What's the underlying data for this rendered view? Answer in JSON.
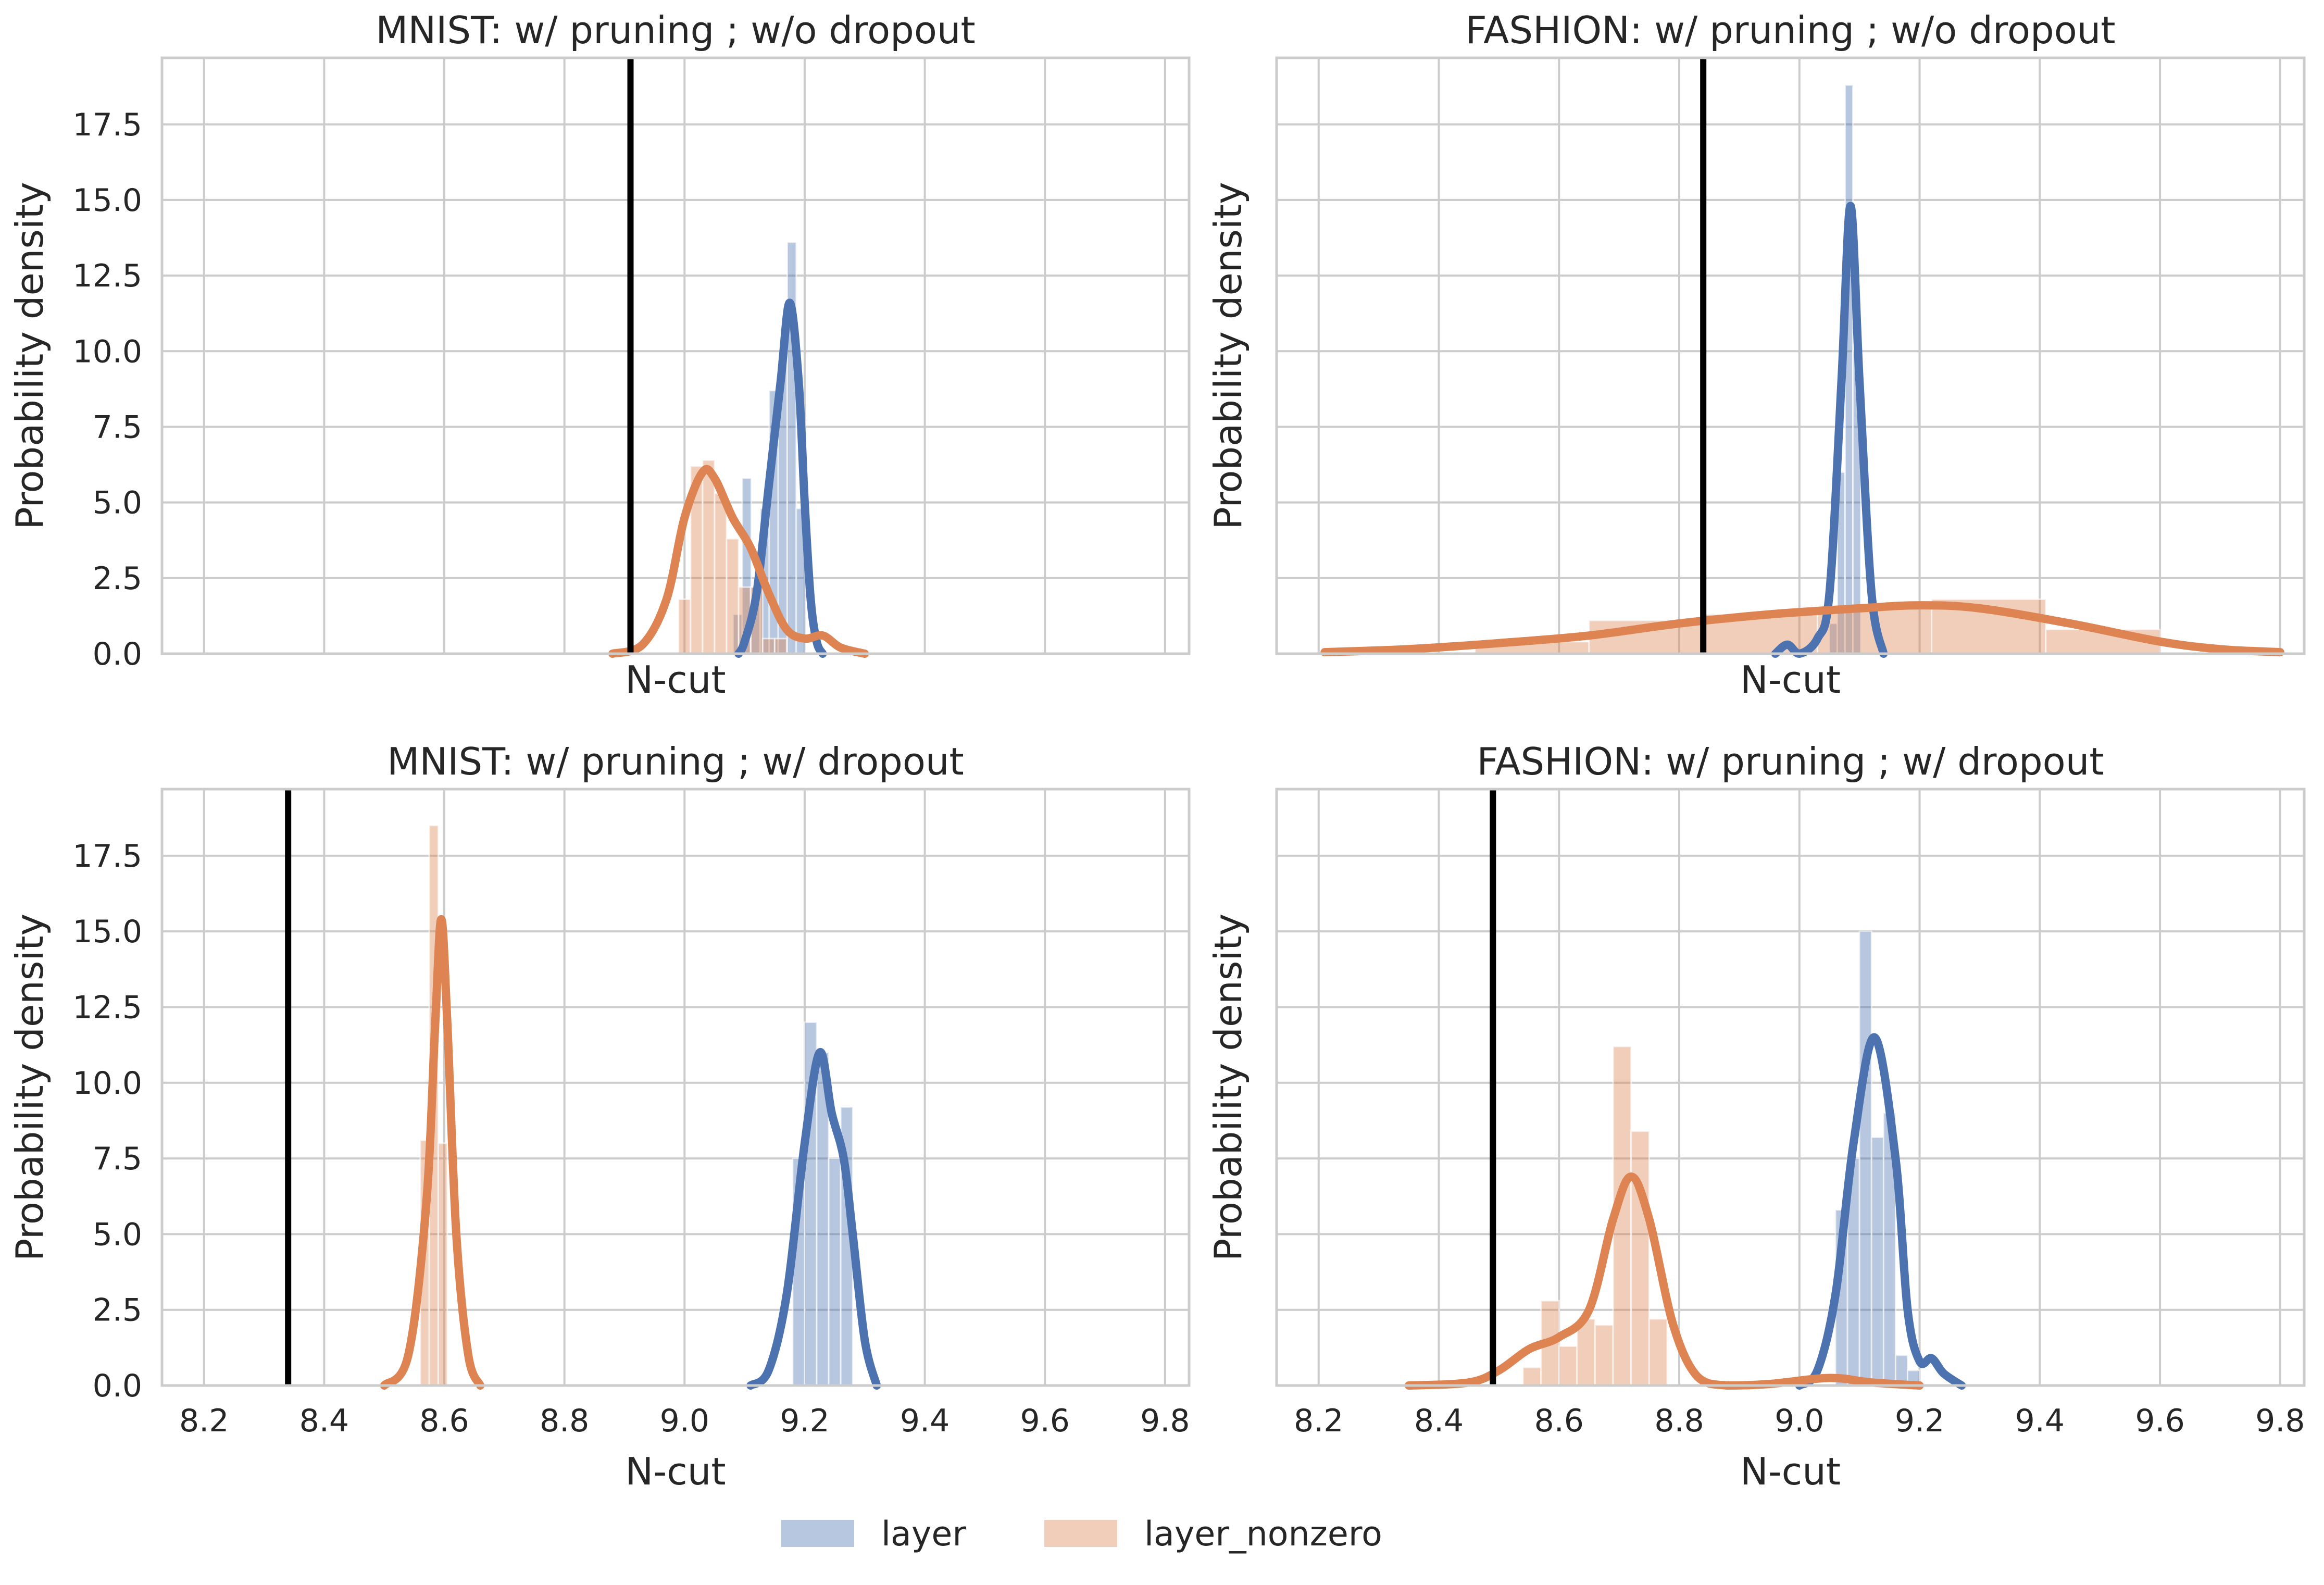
{
  "colors": {
    "layer": "#4c72b0",
    "layer_nonzero": "#dd8452",
    "grid": "#cccccc",
    "reference_line": "#000000",
    "background": "#ffffff"
  },
  "legend": {
    "layer": "layer",
    "layer_nonzero": "layer_nonzero"
  },
  "chart_data": [
    {
      "type": "histogram+kde",
      "title": "MNIST: w/ pruning ; w/o dropout",
      "xlabel": "N-cut",
      "ylabel": "Probability density",
      "xlim": [
        8.13,
        9.84
      ],
      "ylim": [
        0,
        19.7
      ],
      "xticks": [],
      "yticks": [
        "0.0",
        "2.5",
        "5.0",
        "7.5",
        "10.0",
        "12.5",
        "15.0",
        "17.5"
      ],
      "grid_x": [
        8.2,
        8.4,
        8.6,
        8.8,
        9.0,
        9.2,
        9.4,
        9.6,
        9.8
      ],
      "grid_y": [
        0,
        2.5,
        5,
        7.5,
        10,
        12.5,
        15,
        17.5
      ],
      "reference_line_x": 8.91,
      "series": [
        {
          "name": "layer",
          "hist": [
            {
              "x0": 9.081,
              "x1": 9.096,
              "h": 1.3
            },
            {
              "x0": 9.096,
              "x1": 9.111,
              "h": 5.8
            },
            {
              "x0": 9.111,
              "x1": 9.126,
              "h": 2.2
            },
            {
              "x0": 9.126,
              "x1": 9.141,
              "h": 4.8
            },
            {
              "x0": 9.141,
              "x1": 9.156,
              "h": 8.7
            },
            {
              "x0": 9.156,
              "x1": 9.171,
              "h": 9.7
            },
            {
              "x0": 9.171,
              "x1": 9.186,
              "h": 13.6
            },
            {
              "x0": 9.186,
              "x1": 9.201,
              "h": 4.8
            }
          ],
          "kde": [
            [
              9.09,
              0.0
            ],
            [
              9.1,
              0.4
            ],
            [
              9.12,
              2.0
            ],
            [
              9.14,
              5.5
            ],
            [
              9.16,
              9.0
            ],
            [
              9.175,
              11.6
            ],
            [
              9.19,
              9.0
            ],
            [
              9.2,
              5.0
            ],
            [
              9.21,
              1.8
            ],
            [
              9.22,
              0.4
            ],
            [
              9.23,
              0.0
            ]
          ]
        },
        {
          "name": "layer_nonzero",
          "hist": [
            {
              "x0": 8.99,
              "x1": 9.01,
              "h": 1.8
            },
            {
              "x0": 9.01,
              "x1": 9.03,
              "h": 6.2
            },
            {
              "x0": 9.03,
              "x1": 9.05,
              "h": 6.4
            },
            {
              "x0": 9.05,
              "x1": 9.07,
              "h": 5.3
            },
            {
              "x0": 9.07,
              "x1": 9.09,
              "h": 3.8
            },
            {
              "x0": 9.09,
              "x1": 9.11,
              "h": 2.2
            },
            {
              "x0": 9.11,
              "x1": 9.13,
              "h": 2.2
            },
            {
              "x0": 9.13,
              "x1": 9.15,
              "h": 0.5
            },
            {
              "x0": 9.15,
              "x1": 9.17,
              "h": 0.5
            }
          ],
          "kde": [
            [
              8.88,
              0.0
            ],
            [
              8.93,
              0.3
            ],
            [
              8.97,
              1.8
            ],
            [
              9.0,
              4.5
            ],
            [
              9.03,
              6.0
            ],
            [
              9.05,
              5.8
            ],
            [
              9.08,
              4.5
            ],
            [
              9.11,
              3.5
            ],
            [
              9.14,
              2.0
            ],
            [
              9.17,
              0.8
            ],
            [
              9.2,
              0.5
            ],
            [
              9.23,
              0.6
            ],
            [
              9.26,
              0.2
            ],
            [
              9.3,
              0.0
            ]
          ]
        }
      ]
    },
    {
      "type": "histogram+kde",
      "title": "FASHION: w/ pruning ; w/o dropout",
      "xlabel": "N-cut",
      "ylabel": "Probability density",
      "xlim": [
        8.13,
        9.84
      ],
      "ylim": [
        0,
        19.7
      ],
      "xticks": [],
      "yticks": [],
      "grid_x": [
        8.2,
        8.4,
        8.6,
        8.8,
        9.0,
        9.2,
        9.4,
        9.6,
        9.8
      ],
      "grid_y": [
        0,
        2.5,
        5,
        7.5,
        10,
        12.5,
        15,
        17.5
      ],
      "reference_line_x": 8.84,
      "series": [
        {
          "name": "layer",
          "hist": [
            {
              "x0": 9.05,
              "x1": 9.063,
              "h": 1.0
            },
            {
              "x0": 9.063,
              "x1": 9.076,
              "h": 6.0
            },
            {
              "x0": 9.076,
              "x1": 9.089,
              "h": 18.8
            },
            {
              "x0": 9.089,
              "x1": 9.102,
              "h": 10.0
            }
          ],
          "kde": [
            [
              8.96,
              0.0
            ],
            [
              8.98,
              0.3
            ],
            [
              9.0,
              0.0
            ],
            [
              9.03,
              0.5
            ],
            [
              9.05,
              2.0
            ],
            [
              9.07,
              9.0
            ],
            [
              9.085,
              14.8
            ],
            [
              9.1,
              9.0
            ],
            [
              9.12,
              2.0
            ],
            [
              9.14,
              0.0
            ]
          ]
        },
        {
          "name": "layer_nonzero",
          "hist": [
            {
              "x0": 8.46,
              "x1": 8.65,
              "h": 0.4
            },
            {
              "x0": 8.65,
              "x1": 8.84,
              "h": 1.1
            },
            {
              "x0": 8.84,
              "x1": 9.03,
              "h": 1.3
            },
            {
              "x0": 9.03,
              "x1": 9.22,
              "h": 1.5
            },
            {
              "x0": 9.22,
              "x1": 9.41,
              "h": 1.8
            },
            {
              "x0": 9.41,
              "x1": 9.6,
              "h": 0.8
            }
          ],
          "kde": [
            [
              8.21,
              0.05
            ],
            [
              8.35,
              0.15
            ],
            [
              8.5,
              0.35
            ],
            [
              8.65,
              0.6
            ],
            [
              8.8,
              1.0
            ],
            [
              8.95,
              1.3
            ],
            [
              9.1,
              1.5
            ],
            [
              9.2,
              1.6
            ],
            [
              9.3,
              1.5
            ],
            [
              9.45,
              1.0
            ],
            [
              9.6,
              0.4
            ],
            [
              9.7,
              0.15
            ],
            [
              9.8,
              0.05
            ]
          ]
        }
      ]
    },
    {
      "type": "histogram+kde",
      "title": "MNIST: w/ pruning ; w/ dropout",
      "xlabel": "N-cut",
      "ylabel": "Probability density",
      "xlim": [
        8.13,
        9.84
      ],
      "ylim": [
        0,
        19.7
      ],
      "xticks": [
        "8.2",
        "8.4",
        "8.6",
        "8.8",
        "9.0",
        "9.2",
        "9.4",
        "9.6",
        "9.8"
      ],
      "yticks": [
        "0.0",
        "2.5",
        "5.0",
        "7.5",
        "10.0",
        "12.5",
        "15.0",
        "17.5"
      ],
      "grid_x": [
        8.2,
        8.4,
        8.6,
        8.8,
        9.0,
        9.2,
        9.4,
        9.6,
        9.8
      ],
      "grid_y": [
        0,
        2.5,
        5,
        7.5,
        10,
        12.5,
        15,
        17.5
      ],
      "reference_line_x": 8.34,
      "series": [
        {
          "name": "layer",
          "hist": [
            {
              "x0": 9.18,
              "x1": 9.2,
              "h": 7.5
            },
            {
              "x0": 9.2,
              "x1": 9.22,
              "h": 12.0
            },
            {
              "x0": 9.22,
              "x1": 9.24,
              "h": 11.0
            },
            {
              "x0": 9.24,
              "x1": 9.26,
              "h": 7.5
            },
            {
              "x0": 9.26,
              "x1": 9.28,
              "h": 9.2
            }
          ],
          "kde": [
            [
              9.11,
              0.0
            ],
            [
              9.14,
              0.5
            ],
            [
              9.17,
              3.0
            ],
            [
              9.2,
              8.0
            ],
            [
              9.225,
              11.0
            ],
            [
              9.245,
              9.0
            ],
            [
              9.265,
              7.5
            ],
            [
              9.28,
              5.0
            ],
            [
              9.3,
              1.5
            ],
            [
              9.32,
              0.0
            ]
          ]
        },
        {
          "name": "layer_nonzero",
          "hist": [
            {
              "x0": 8.56,
              "x1": 8.575,
              "h": 8.1
            },
            {
              "x0": 8.575,
              "x1": 8.59,
              "h": 18.5
            },
            {
              "x0": 8.59,
              "x1": 8.605,
              "h": 8.0
            }
          ],
          "kde": [
            [
              8.5,
              0.0
            ],
            [
              8.54,
              1.0
            ],
            [
              8.57,
              6.0
            ],
            [
              8.585,
              12.0
            ],
            [
              8.595,
              15.4
            ],
            [
              8.605,
              12.0
            ],
            [
              8.62,
              5.0
            ],
            [
              8.64,
              1.0
            ],
            [
              8.66,
              0.0
            ]
          ]
        }
      ]
    },
    {
      "type": "histogram+kde",
      "title": "FASHION: w/ pruning ; w/ dropout",
      "xlabel": "N-cut",
      "ylabel": "Probability density",
      "xlim": [
        8.13,
        9.84
      ],
      "ylim": [
        0,
        19.7
      ],
      "xticks": [
        "8.2",
        "8.4",
        "8.6",
        "8.8",
        "9.0",
        "9.2",
        "9.4",
        "9.6",
        "9.8"
      ],
      "yticks": [],
      "grid_x": [
        8.2,
        8.4,
        8.6,
        8.8,
        9.0,
        9.2,
        9.4,
        9.6,
        9.8
      ],
      "grid_y": [
        0,
        2.5,
        5,
        7.5,
        10,
        12.5,
        15,
        17.5
      ],
      "reference_line_x": 8.49,
      "series": [
        {
          "name": "layer",
          "hist": [
            {
              "x0": 9.06,
              "x1": 9.08,
              "h": 5.8
            },
            {
              "x0": 9.08,
              "x1": 9.1,
              "h": 7.5
            },
            {
              "x0": 9.1,
              "x1": 9.12,
              "h": 15.0
            },
            {
              "x0": 9.12,
              "x1": 9.14,
              "h": 8.2
            },
            {
              "x0": 9.14,
              "x1": 9.16,
              "h": 9.0
            },
            {
              "x0": 9.16,
              "x1": 9.18,
              "h": 1.0
            },
            {
              "x0": 9.18,
              "x1": 9.2,
              "h": 0.5
            }
          ],
          "kde": [
            [
              9.0,
              0.0
            ],
            [
              9.03,
              0.5
            ],
            [
              9.06,
              3.0
            ],
            [
              9.09,
              8.0
            ],
            [
              9.125,
              11.5
            ],
            [
              9.16,
              7.5
            ],
            [
              9.18,
              2.5
            ],
            [
              9.2,
              0.8
            ],
            [
              9.22,
              0.9
            ],
            [
              9.24,
              0.4
            ],
            [
              9.27,
              0.0
            ]
          ]
        },
        {
          "name": "layer_nonzero",
          "hist": [
            {
              "x0": 8.54,
              "x1": 8.57,
              "h": 0.6
            },
            {
              "x0": 8.57,
              "x1": 8.6,
              "h": 2.8
            },
            {
              "x0": 8.6,
              "x1": 8.63,
              "h": 1.3
            },
            {
              "x0": 8.63,
              "x1": 8.66,
              "h": 2.2
            },
            {
              "x0": 8.66,
              "x1": 8.69,
              "h": 2.0
            },
            {
              "x0": 8.69,
              "x1": 8.72,
              "h": 11.2
            },
            {
              "x0": 8.72,
              "x1": 8.75,
              "h": 8.4
            },
            {
              "x0": 8.75,
              "x1": 8.78,
              "h": 2.2
            }
          ],
          "kde": [
            [
              8.35,
              0.0
            ],
            [
              8.45,
              0.1
            ],
            [
              8.5,
              0.5
            ],
            [
              8.55,
              1.2
            ],
            [
              8.6,
              1.6
            ],
            [
              8.65,
              2.5
            ],
            [
              8.69,
              5.5
            ],
            [
              8.72,
              6.9
            ],
            [
              8.75,
              5.5
            ],
            [
              8.79,
              2.0
            ],
            [
              8.83,
              0.3
            ],
            [
              8.88,
              0.0
            ],
            [
              8.95,
              0.05
            ],
            [
              9.05,
              0.25
            ],
            [
              9.12,
              0.1
            ],
            [
              9.2,
              0.0
            ]
          ]
        }
      ]
    }
  ]
}
